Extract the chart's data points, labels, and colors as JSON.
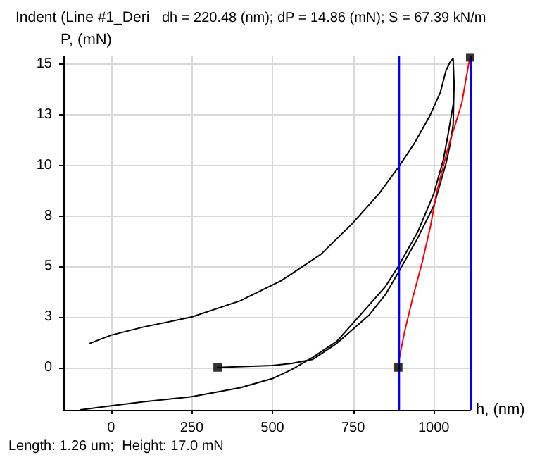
{
  "chart_data": {
    "type": "line",
    "title": "Indent (Line #1_Deri",
    "subtitle": "dh = 220.48 (nm); dP = 14.86 (mN); S = 67.39 kN/m",
    "xlabel": "h, (nm)",
    "ylabel": "P, (mN)",
    "annotations": [
      "Length: 1.26 um;  Height: 17.0 mN"
    ],
    "xlim": [
      -148,
      1113
    ],
    "ylim": [
      -2.1,
      15.4
    ],
    "xticks": [
      0,
      250,
      500,
      750,
      1000
    ],
    "yticks": [
      0,
      {
        "value": 2.5,
        "label": "3"
      },
      5,
      {
        "value": 7.5,
        "label": "8"
      },
      10,
      {
        "value": 12.5,
        "label": "13"
      },
      15
    ],
    "grid": true,
    "series": [
      {
        "color": "#000000",
        "marker": "none",
        "x": [
          -65,
          0,
          100,
          250,
          400,
          528,
          650,
          746,
          830,
          890,
          940,
          986,
          1020,
          1038,
          1050,
          1060,
          1063,
          1060,
          1050,
          1038,
          1000,
          950,
          890,
          850,
          800,
          750,
          700,
          625,
          560,
          500,
          420,
          330
        ],
        "values": [
          1.2,
          1.6,
          2.0,
          2.5,
          3.3,
          4.3,
          5.6,
          7.1,
          8.6,
          9.9,
          11.1,
          12.4,
          13.6,
          14.7,
          15.1,
          15.3,
          14.0,
          12.0,
          11.0,
          10.1,
          8.0,
          6.4,
          4.7,
          3.6,
          2.6,
          1.9,
          1.2,
          0.4,
          0.2,
          0.1,
          0.05,
          0
        ]
      },
      {
        "color": "#000000",
        "marker": "none",
        "x": [
          -96,
          0,
          100,
          250,
          400,
          500,
          560,
          625,
          700,
          750,
          800,
          850,
          890,
          950,
          1000,
          1030,
          1045,
          1060
        ],
        "values": [
          -2.1,
          -1.9,
          -1.7,
          -1.45,
          -1.0,
          -0.55,
          -0.1,
          0.5,
          1.3,
          2.2,
          3.1,
          4.0,
          5.0,
          6.7,
          8.6,
          10.3,
          11.6,
          13.0
        ]
      },
      {
        "color": "#ff0000",
        "marker": "none",
        "x": [
          890,
          910,
          934,
          964,
          990,
          1008,
          1030,
          1043,
          1052,
          1070,
          1087,
          1100,
          1108,
          1113
        ],
        "values": [
          0.2,
          1.8,
          3.4,
          5.2,
          7.0,
          8.6,
          10.0,
          10.8,
          11.3,
          12.2,
          13.1,
          14.3,
          15.0,
          15.35
        ]
      },
      {
        "type": "scatter",
        "color": "#000000",
        "marker": "square",
        "x": [
          330,
          890,
          1113
        ],
        "values": [
          0,
          0,
          15.35
        ]
      }
    ],
    "ref_lines": [
      {
        "axis": "x",
        "value": 890,
        "color": "#0000ff"
      },
      {
        "axis": "x",
        "value": 1113,
        "color": "#0000ff"
      }
    ]
  }
}
